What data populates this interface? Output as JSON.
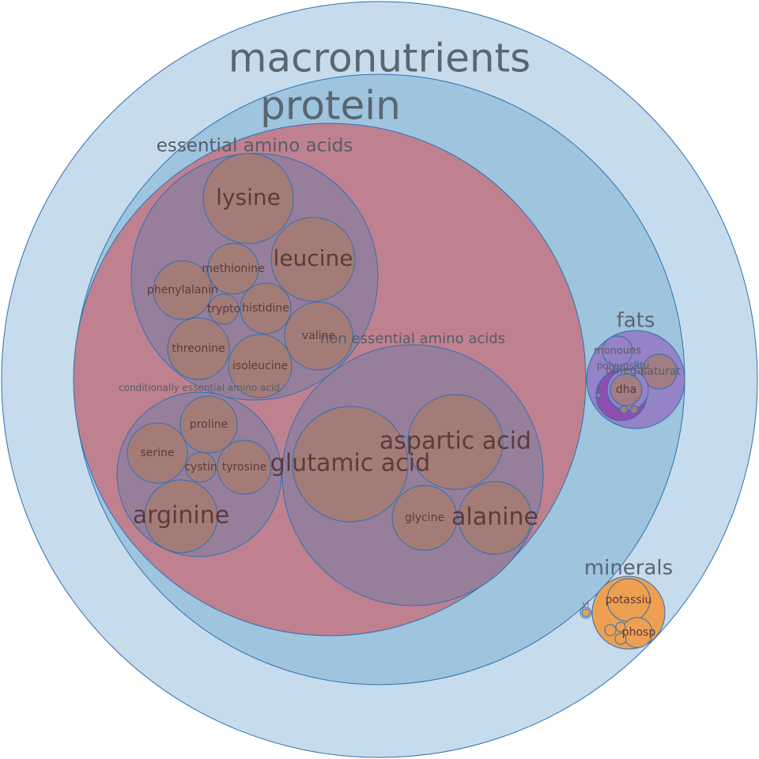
{
  "chart_data": {
    "type": "bubble",
    "title": "",
    "colors": {
      "outer": "#c6dcec",
      "protein": "#9ec4de",
      "amino": "#bf8190",
      "amino_group": "#977f9b",
      "amino_leaf": "#a47c77",
      "fats": "#9682c6",
      "fats_inner": "#8e4fb0",
      "minerals": "#eda052",
      "stroke": "#2f6fb0"
    },
    "root": {
      "label": "macronutrients",
      "children": [
        {
          "label": "protein",
          "children": [
            {
              "label": "",
              "children": [
                {
                  "label": "essential amino acids",
                  "children": [
                    {
                      "label": "lysine",
                      "value": 13
                    },
                    {
                      "label": "leucine",
                      "value": 11.5
                    },
                    {
                      "label": "methionine",
                      "value": 4.2
                    },
                    {
                      "label": "phenylalanin",
                      "value": 5.5
                    },
                    {
                      "label": "trypto",
                      "value": 1.5
                    },
                    {
                      "label": "histidine",
                      "value": 4.2
                    },
                    {
                      "label": "valine",
                      "value": 7.5
                    },
                    {
                      "label": "threonine",
                      "value": 6.4
                    },
                    {
                      "label": "isoleucine",
                      "value": 6.4
                    }
                  ]
                },
                {
                  "label": "non essential amino acids",
                  "children": [
                    {
                      "label": "glutamic acid",
                      "value": 21.5
                    },
                    {
                      "label": "aspartic acid",
                      "value": 14.5
                    },
                    {
                      "label": "glycine",
                      "value": 6.8
                    },
                    {
                      "label": "alanine",
                      "value": 8.4
                    }
                  ]
                },
                {
                  "label": "conditionally essential amino acid",
                  "children": [
                    {
                      "label": "proline",
                      "value": 5.1
                    },
                    {
                      "label": "serine",
                      "value": 5.6
                    },
                    {
                      "label": "cystin",
                      "value": 1.5
                    },
                    {
                      "label": "tyrosine",
                      "value": 4.7
                    },
                    {
                      "label": "arginine",
                      "value": 8.4
                    }
                  ]
                }
              ]
            }
          ]
        },
        {
          "label": "fats",
          "children": [
            {
              "label": "monouns",
              "value": 1.3
            },
            {
              "label": "polyunsatu",
              "value": 1.3
            },
            {
              "label": "omega",
              "value": 1.2
            },
            {
              "label": "saturat",
              "value": 1.2
            },
            {
              "label": "dha",
              "value": 0.7
            },
            {
              "label": "o",
              "value": 0.05
            }
          ]
        },
        {
          "label": "minerals",
          "children": [
            {
              "label": "potassiu",
              "value": 2.0
            },
            {
              "label": "phosp",
              "value": 1.0
            }
          ]
        },
        {
          "label": "vi",
          "value": 0.1
        }
      ]
    }
  }
}
